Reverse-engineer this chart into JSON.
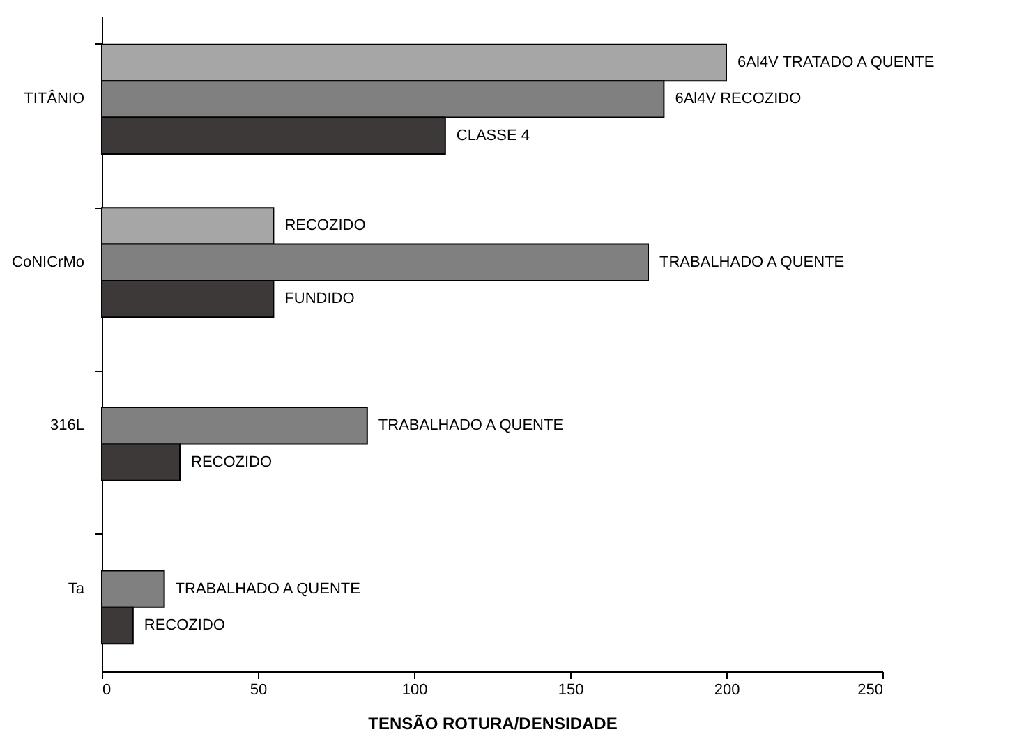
{
  "chart_data": {
    "type": "bar",
    "orientation": "horizontal",
    "xlabel": "TENSÃO ROTURA/DENSIDADE",
    "categories": [
      "TITÂNIO",
      "CoNICrMo",
      "316L",
      "Ta"
    ],
    "series": [
      {
        "color": "#a6a6a6",
        "values": [
          200,
          55,
          null,
          null
        ]
      },
      {
        "color": "#808080",
        "values": [
          180,
          175,
          85,
          20
        ]
      },
      {
        "color": "#3d3939",
        "values": [
          110,
          55,
          25,
          10
        ]
      }
    ],
    "xlim": [
      0,
      250
    ],
    "xticks": [
      0,
      50,
      100,
      150,
      200,
      250
    ],
    "grid": false,
    "legend": false,
    "annotations": [
      "6Al4V TRATADO A QUENTE",
      "6Al4V RECOZIDO",
      "CLASSE 4",
      "RECOZIDO",
      "TRABALHADO A QUENTE",
      "FUNDIDO",
      "TRABALHADO A QUENTE",
      "RECOZIDO",
      "TRABALHADO A QUENTE",
      "RECOZIDO"
    ]
  }
}
